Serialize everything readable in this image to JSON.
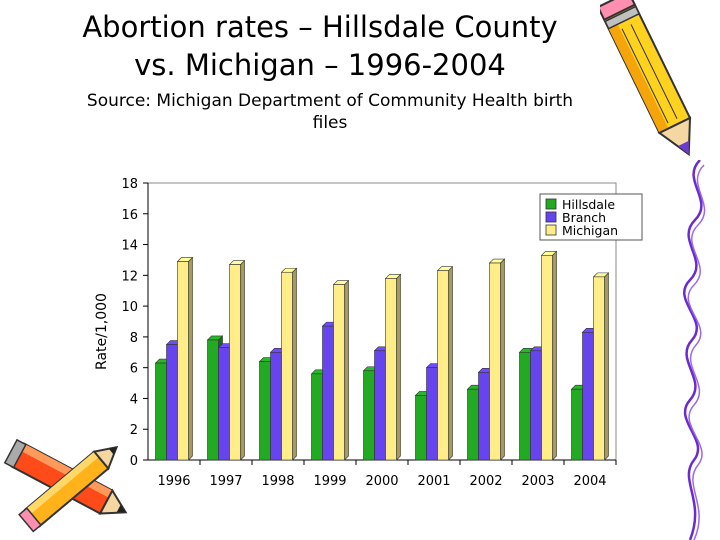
{
  "slide": {
    "title_line1": "Abortion rates – Hillsdale County",
    "title_line2": "vs. Michigan – 1996-2004",
    "subtitle_line1": "Source: Michigan Department of Community Health birth",
    "subtitle_line2": "files"
  },
  "decorations": {
    "pencil_top_right": "pencil-icon",
    "pencils_bottom_left": "pencils-icon",
    "squiggle_right": "squiggle-line"
  },
  "chart_data": {
    "type": "bar",
    "title": "",
    "xlabel": "",
    "ylabel": "Rate/1,000",
    "ylim": [
      0,
      18
    ],
    "yticks": [
      0,
      2,
      4,
      6,
      8,
      10,
      12,
      14,
      16,
      18
    ],
    "grid": false,
    "legend_position": "top-right",
    "style": "3d",
    "categories": [
      "1996",
      "1997",
      "1998",
      "1999",
      "2000",
      "2001",
      "2002",
      "2003",
      "2004"
    ],
    "series": [
      {
        "name": "Hillsdale",
        "color": "#22aa22",
        "values": [
          6.3,
          7.8,
          6.4,
          5.6,
          5.8,
          4.2,
          4.6,
          7.0,
          4.6
        ]
      },
      {
        "name": "Branch",
        "color": "#6644ee",
        "values": [
          7.5,
          7.3,
          7.0,
          8.7,
          7.1,
          6.0,
          5.7,
          7.1,
          8.3
        ]
      },
      {
        "name": "Michigan",
        "color": "#ffee88",
        "values": [
          12.9,
          12.7,
          12.2,
          11.4,
          11.8,
          12.3,
          12.8,
          13.3,
          11.9
        ]
      }
    ]
  }
}
